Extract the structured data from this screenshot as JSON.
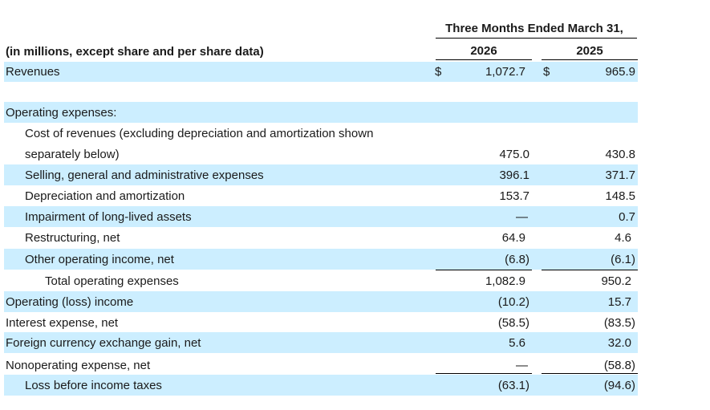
{
  "header": {
    "period_heading": "Three Months Ended March 31,",
    "units_note": "(in millions, except share and per share data)",
    "year_1": "2026",
    "year_2": "2025"
  },
  "currency_symbol": "$",
  "rows": {
    "revenues": {
      "label": "Revenues",
      "v2026": "1,072.7",
      "v2025": "965.9"
    },
    "opex_heading": {
      "label": "Operating expenses:"
    },
    "cost_of_revenues": {
      "label_line1": "Cost of revenues (excluding depreciation and amortization shown",
      "label_line2": "separately below)",
      "v2026": "475.0",
      "v2025": "430.8"
    },
    "sga": {
      "label": "Selling, general and administrative expenses",
      "v2026": "396.1",
      "v2025": "371.7"
    },
    "depreciation": {
      "label": "Depreciation and amortization",
      "v2026": "153.7",
      "v2025": "148.5"
    },
    "impairment": {
      "label": "Impairment of long-lived assets",
      "v2026": "—",
      "v2025": "0.7"
    },
    "restructuring": {
      "label": "Restructuring, net",
      "v2026": "64.9",
      "v2025": "4.6"
    },
    "other_operating": {
      "label": "Other operating income, net",
      "v2026": "(6.8)",
      "v2025": "(6.1)"
    },
    "total_opex": {
      "label": "Total operating expenses",
      "v2026": "1,082.9",
      "v2025": "950.2"
    },
    "operating_income": {
      "label": "Operating (loss) income",
      "v2026": "(10.2)",
      "v2025": "15.7"
    },
    "interest_expense": {
      "label": "Interest expense, net",
      "v2026": "(58.5)",
      "v2025": "(83.5)"
    },
    "fx_gain": {
      "label": "Foreign currency exchange gain, net",
      "v2026": "5.6",
      "v2025": "32.0"
    },
    "nonoperating": {
      "label": "Nonoperating expense, net",
      "v2026": "—",
      "v2025": "(58.8)"
    },
    "loss_before_taxes": {
      "label": "Loss before income taxes",
      "v2026": "(63.1)",
      "v2025": "(94.6)"
    }
  }
}
